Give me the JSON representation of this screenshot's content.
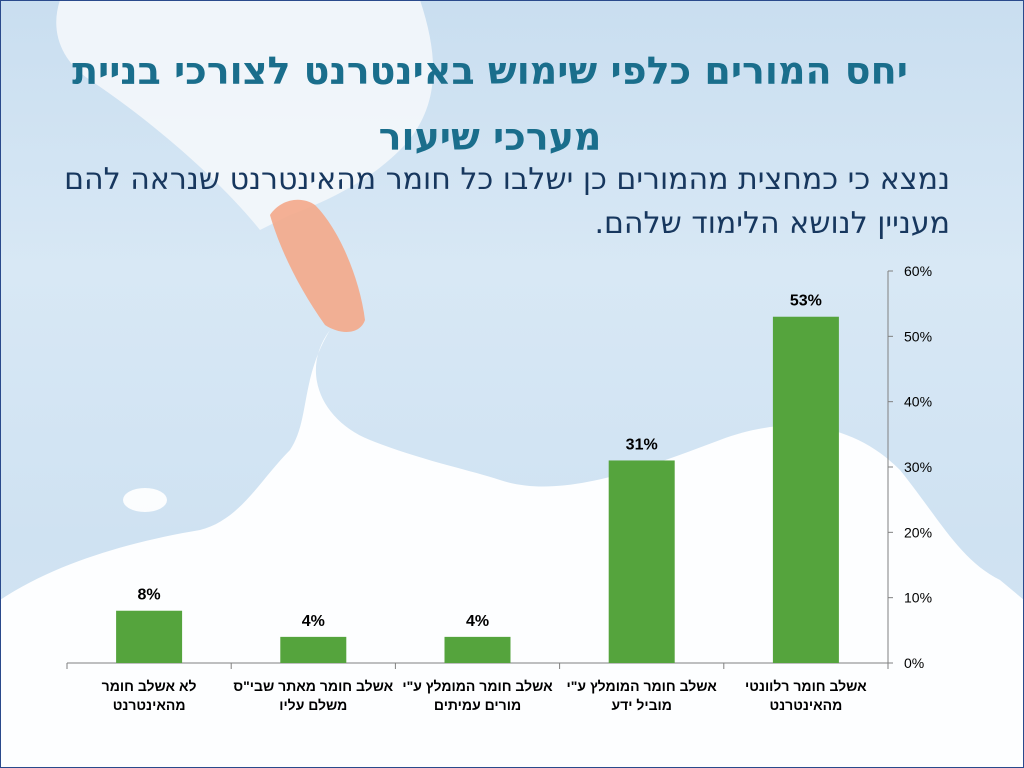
{
  "slide": {
    "title": "יחס המורים כלפי שימוש באינטרנט לצורכי בניית מערכי שיעור",
    "subtitle": "נמצא כי כמחצית מהמורים כן ישלבו כל חומר מהאינטרנט שנראה להם מעניין לנושא הלימוד שלהם."
  },
  "chart_data": {
    "type": "bar",
    "categories": [
      "לא אשלב חומר מהאינטרנט",
      "אשלב חומר מאתר שבי\"ס משלם עליו",
      "אשלב חומר המומלץ ע\"י מורים עמיתים",
      "אשלב חומר המומלץ ע\"י מוביל ידע",
      "אשלב חומר רלוונטי מהאינטרנט"
    ],
    "values": [
      8,
      4,
      4,
      31,
      53
    ],
    "data_labels": [
      "8%",
      "4%",
      "4%",
      "31%",
      "53%"
    ],
    "ylim": [
      0,
      60
    ],
    "yticks": [
      0,
      10,
      20,
      30,
      40,
      50,
      60
    ],
    "ytick_labels": [
      "0%",
      "10%",
      "20%",
      "30%",
      "40%",
      "50%",
      "60%"
    ],
    "y_axis_side": "right",
    "bar_color": "#55a43d",
    "grid": false,
    "legend": "none"
  }
}
